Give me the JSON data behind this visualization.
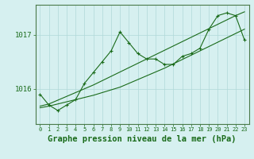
{
  "xlabel_label": "Graphe pression niveau de la mer (hPa)",
  "hours": [
    0,
    1,
    2,
    3,
    4,
    5,
    6,
    7,
    8,
    9,
    10,
    11,
    12,
    13,
    14,
    15,
    16,
    17,
    18,
    19,
    20,
    21,
    22,
    23
  ],
  "pressure_main": [
    1015.9,
    1015.7,
    1015.6,
    1015.7,
    1015.8,
    1016.1,
    1016.3,
    1016.5,
    1016.7,
    1017.05,
    1016.85,
    1016.65,
    1016.55,
    1016.55,
    1016.45,
    1016.45,
    1016.6,
    1016.65,
    1016.75,
    1017.1,
    1017.35,
    1017.4,
    1017.35,
    1016.9
  ],
  "line_low": [
    1015.65,
    1015.68,
    1015.72,
    1015.76,
    1015.8,
    1015.84,
    1015.88,
    1015.93,
    1015.98,
    1016.03,
    1016.1,
    1016.17,
    1016.24,
    1016.31,
    1016.38,
    1016.46,
    1016.54,
    1016.62,
    1016.7,
    1016.78,
    1016.86,
    1016.94,
    1017.02,
    1017.1
  ],
  "line_high": [
    1015.68,
    1015.72,
    1015.79,
    1015.86,
    1015.93,
    1016.0,
    1016.07,
    1016.15,
    1016.23,
    1016.31,
    1016.39,
    1016.47,
    1016.55,
    1016.63,
    1016.71,
    1016.79,
    1016.87,
    1016.95,
    1017.03,
    1017.11,
    1017.19,
    1017.27,
    1017.35,
    1017.42
  ],
  "bg_color": "#d6f0f0",
  "grid_color": "#b0d8d8",
  "line_color": "#1a6b1a",
  "axis_color": "#4a7a4a",
  "text_color": "#1a6b1a",
  "ylim_min": 1015.35,
  "ylim_max": 1017.55,
  "ytick_values": [
    1016.0,
    1017.0
  ],
  "ytick_labels": [
    "1016",
    "1017"
  ],
  "xlabel_fontsize": 7.5,
  "tick_fontsize": 6.5
}
